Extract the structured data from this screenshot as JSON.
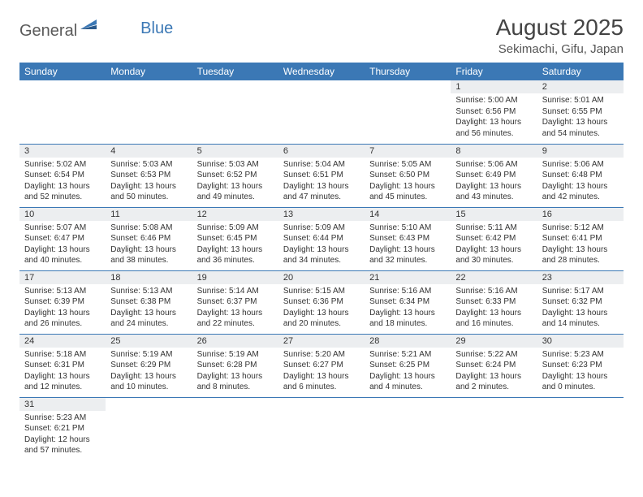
{
  "logo": {
    "text1": "General",
    "text2": "Blue",
    "flag_color": "#3b78b5"
  },
  "title": "August 2025",
  "location": "Sekimachi, Gifu, Japan",
  "colors": {
    "header_bg": "#3b78b5",
    "header_text": "#ffffff",
    "daynum_bg": "#eceef0",
    "border": "#3b78b5",
    "text": "#333333",
    "background": "#ffffff"
  },
  "weekdays": [
    "Sunday",
    "Monday",
    "Tuesday",
    "Wednesday",
    "Thursday",
    "Friday",
    "Saturday"
  ],
  "weeks": [
    [
      null,
      null,
      null,
      null,
      null,
      {
        "n": "1",
        "sr": "Sunrise: 5:00 AM",
        "ss": "Sunset: 6:56 PM",
        "d1": "Daylight: 13 hours",
        "d2": "and 56 minutes."
      },
      {
        "n": "2",
        "sr": "Sunrise: 5:01 AM",
        "ss": "Sunset: 6:55 PM",
        "d1": "Daylight: 13 hours",
        "d2": "and 54 minutes."
      }
    ],
    [
      {
        "n": "3",
        "sr": "Sunrise: 5:02 AM",
        "ss": "Sunset: 6:54 PM",
        "d1": "Daylight: 13 hours",
        "d2": "and 52 minutes."
      },
      {
        "n": "4",
        "sr": "Sunrise: 5:03 AM",
        "ss": "Sunset: 6:53 PM",
        "d1": "Daylight: 13 hours",
        "d2": "and 50 minutes."
      },
      {
        "n": "5",
        "sr": "Sunrise: 5:03 AM",
        "ss": "Sunset: 6:52 PM",
        "d1": "Daylight: 13 hours",
        "d2": "and 49 minutes."
      },
      {
        "n": "6",
        "sr": "Sunrise: 5:04 AM",
        "ss": "Sunset: 6:51 PM",
        "d1": "Daylight: 13 hours",
        "d2": "and 47 minutes."
      },
      {
        "n": "7",
        "sr": "Sunrise: 5:05 AM",
        "ss": "Sunset: 6:50 PM",
        "d1": "Daylight: 13 hours",
        "d2": "and 45 minutes."
      },
      {
        "n": "8",
        "sr": "Sunrise: 5:06 AM",
        "ss": "Sunset: 6:49 PM",
        "d1": "Daylight: 13 hours",
        "d2": "and 43 minutes."
      },
      {
        "n": "9",
        "sr": "Sunrise: 5:06 AM",
        "ss": "Sunset: 6:48 PM",
        "d1": "Daylight: 13 hours",
        "d2": "and 42 minutes."
      }
    ],
    [
      {
        "n": "10",
        "sr": "Sunrise: 5:07 AM",
        "ss": "Sunset: 6:47 PM",
        "d1": "Daylight: 13 hours",
        "d2": "and 40 minutes."
      },
      {
        "n": "11",
        "sr": "Sunrise: 5:08 AM",
        "ss": "Sunset: 6:46 PM",
        "d1": "Daylight: 13 hours",
        "d2": "and 38 minutes."
      },
      {
        "n": "12",
        "sr": "Sunrise: 5:09 AM",
        "ss": "Sunset: 6:45 PM",
        "d1": "Daylight: 13 hours",
        "d2": "and 36 minutes."
      },
      {
        "n": "13",
        "sr": "Sunrise: 5:09 AM",
        "ss": "Sunset: 6:44 PM",
        "d1": "Daylight: 13 hours",
        "d2": "and 34 minutes."
      },
      {
        "n": "14",
        "sr": "Sunrise: 5:10 AM",
        "ss": "Sunset: 6:43 PM",
        "d1": "Daylight: 13 hours",
        "d2": "and 32 minutes."
      },
      {
        "n": "15",
        "sr": "Sunrise: 5:11 AM",
        "ss": "Sunset: 6:42 PM",
        "d1": "Daylight: 13 hours",
        "d2": "and 30 minutes."
      },
      {
        "n": "16",
        "sr": "Sunrise: 5:12 AM",
        "ss": "Sunset: 6:41 PM",
        "d1": "Daylight: 13 hours",
        "d2": "and 28 minutes."
      }
    ],
    [
      {
        "n": "17",
        "sr": "Sunrise: 5:13 AM",
        "ss": "Sunset: 6:39 PM",
        "d1": "Daylight: 13 hours",
        "d2": "and 26 minutes."
      },
      {
        "n": "18",
        "sr": "Sunrise: 5:13 AM",
        "ss": "Sunset: 6:38 PM",
        "d1": "Daylight: 13 hours",
        "d2": "and 24 minutes."
      },
      {
        "n": "19",
        "sr": "Sunrise: 5:14 AM",
        "ss": "Sunset: 6:37 PM",
        "d1": "Daylight: 13 hours",
        "d2": "and 22 minutes."
      },
      {
        "n": "20",
        "sr": "Sunrise: 5:15 AM",
        "ss": "Sunset: 6:36 PM",
        "d1": "Daylight: 13 hours",
        "d2": "and 20 minutes."
      },
      {
        "n": "21",
        "sr": "Sunrise: 5:16 AM",
        "ss": "Sunset: 6:34 PM",
        "d1": "Daylight: 13 hours",
        "d2": "and 18 minutes."
      },
      {
        "n": "22",
        "sr": "Sunrise: 5:16 AM",
        "ss": "Sunset: 6:33 PM",
        "d1": "Daylight: 13 hours",
        "d2": "and 16 minutes."
      },
      {
        "n": "23",
        "sr": "Sunrise: 5:17 AM",
        "ss": "Sunset: 6:32 PM",
        "d1": "Daylight: 13 hours",
        "d2": "and 14 minutes."
      }
    ],
    [
      {
        "n": "24",
        "sr": "Sunrise: 5:18 AM",
        "ss": "Sunset: 6:31 PM",
        "d1": "Daylight: 13 hours",
        "d2": "and 12 minutes."
      },
      {
        "n": "25",
        "sr": "Sunrise: 5:19 AM",
        "ss": "Sunset: 6:29 PM",
        "d1": "Daylight: 13 hours",
        "d2": "and 10 minutes."
      },
      {
        "n": "26",
        "sr": "Sunrise: 5:19 AM",
        "ss": "Sunset: 6:28 PM",
        "d1": "Daylight: 13 hours",
        "d2": "and 8 minutes."
      },
      {
        "n": "27",
        "sr": "Sunrise: 5:20 AM",
        "ss": "Sunset: 6:27 PM",
        "d1": "Daylight: 13 hours",
        "d2": "and 6 minutes."
      },
      {
        "n": "28",
        "sr": "Sunrise: 5:21 AM",
        "ss": "Sunset: 6:25 PM",
        "d1": "Daylight: 13 hours",
        "d2": "and 4 minutes."
      },
      {
        "n": "29",
        "sr": "Sunrise: 5:22 AM",
        "ss": "Sunset: 6:24 PM",
        "d1": "Daylight: 13 hours",
        "d2": "and 2 minutes."
      },
      {
        "n": "30",
        "sr": "Sunrise: 5:23 AM",
        "ss": "Sunset: 6:23 PM",
        "d1": "Daylight: 13 hours",
        "d2": "and 0 minutes."
      }
    ],
    [
      {
        "n": "31",
        "sr": "Sunrise: 5:23 AM",
        "ss": "Sunset: 6:21 PM",
        "d1": "Daylight: 12 hours",
        "d2": "and 57 minutes."
      },
      null,
      null,
      null,
      null,
      null,
      null
    ]
  ]
}
